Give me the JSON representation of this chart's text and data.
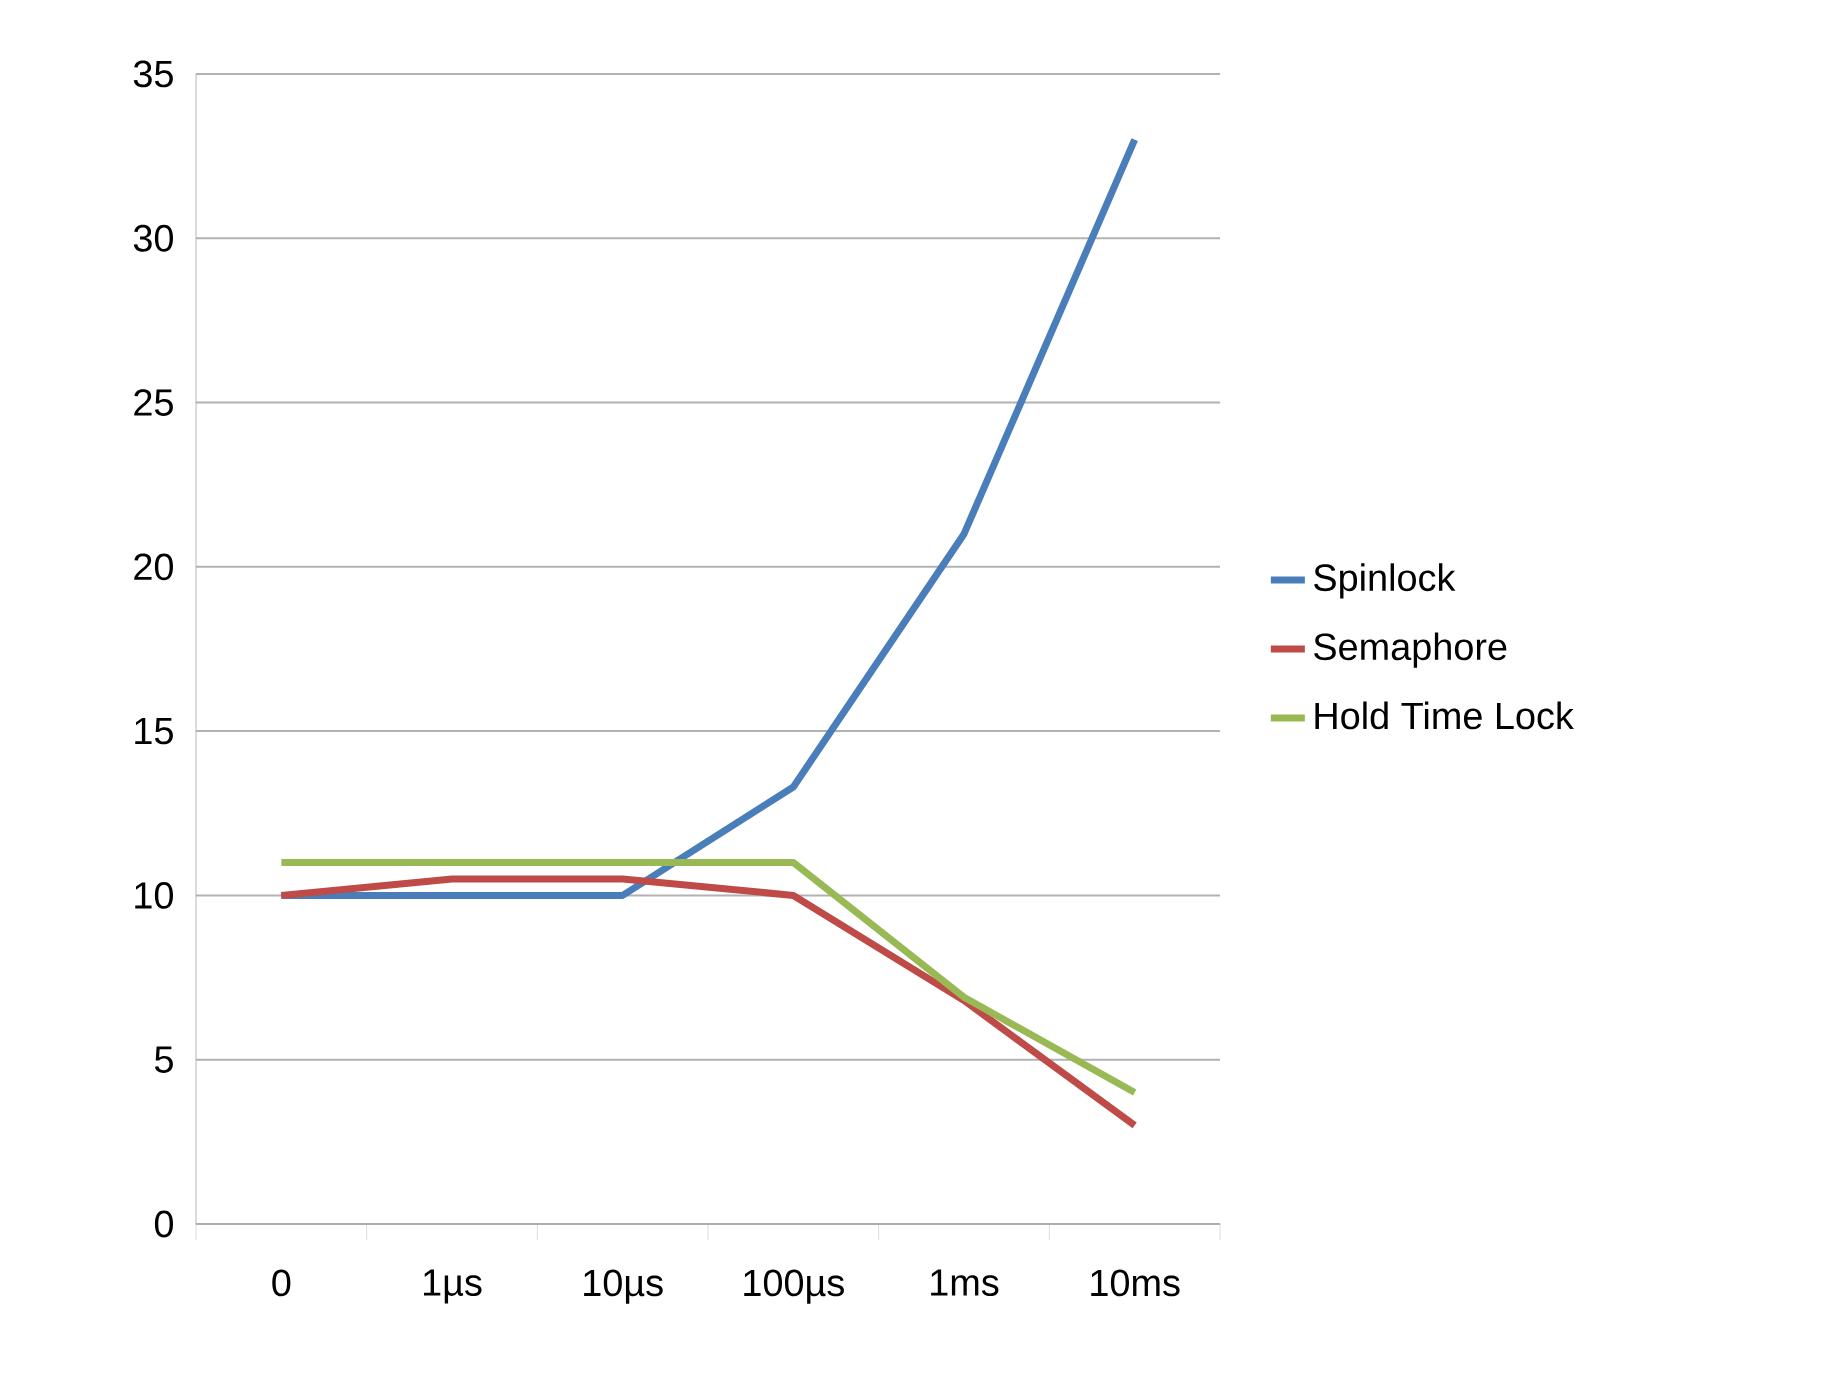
{
  "chart_data": {
    "type": "line",
    "categories": [
      "0",
      "1µs",
      "10µs",
      "100µs",
      "1ms",
      "10ms"
    ],
    "series": [
      {
        "name": "Spinlock",
        "color": "#4a7ebb",
        "values": [
          10,
          10,
          10,
          13.3,
          21,
          33
        ]
      },
      {
        "name": "Semaphore",
        "color": "#be4b48",
        "values": [
          10,
          10.5,
          10.5,
          10,
          6.8,
          3
        ]
      },
      {
        "name": "Hold Time Lock",
        "color": "#98b954",
        "values": [
          11,
          11,
          11,
          11,
          6.9,
          4
        ]
      }
    ],
    "ylim": [
      0,
      35
    ],
    "yticks": [
      0,
      5,
      10,
      15,
      20,
      25,
      30,
      35
    ],
    "grid": "y",
    "legend": "right"
  }
}
